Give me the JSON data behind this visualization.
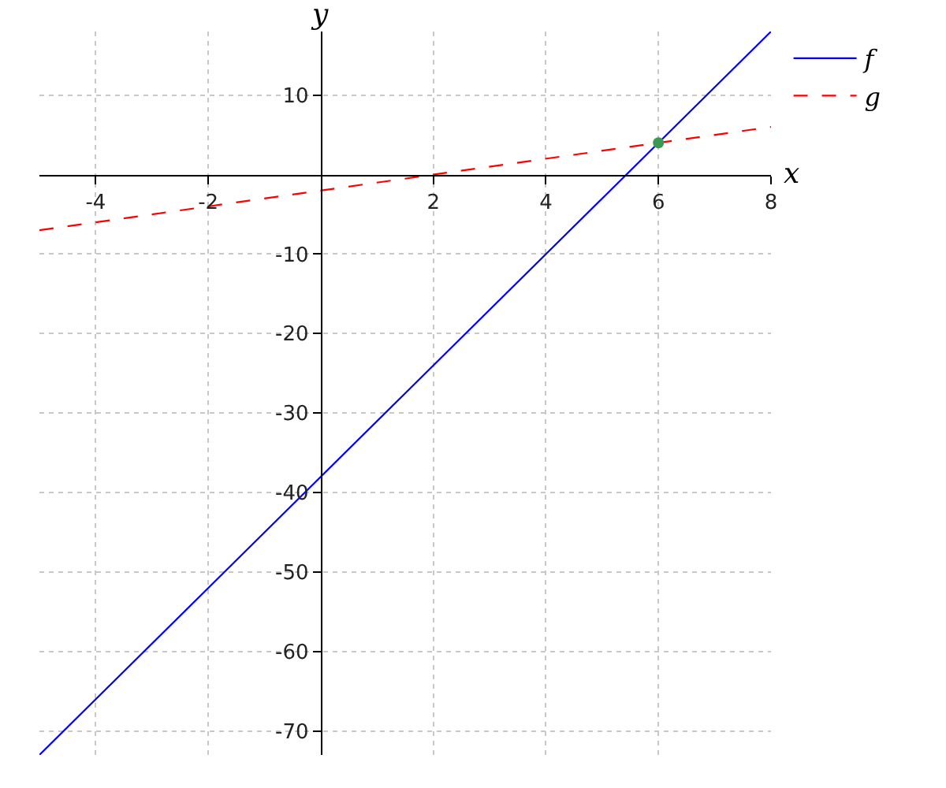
{
  "chart_data": {
    "type": "line",
    "xlabel": "x",
    "ylabel": "y",
    "xlim": [
      -5,
      8
    ],
    "ylim": [
      -73,
      18
    ],
    "xticks": [
      -4,
      -2,
      2,
      4,
      6,
      8
    ],
    "yticks": [
      -70,
      -60,
      -50,
      -40,
      -30,
      -20,
      -10,
      10
    ],
    "grid": true,
    "legend": "top right",
    "series": [
      {
        "name": "f",
        "color": "#0000ff",
        "x": [
          -5,
          8
        ],
        "values": [
          -73,
          18
        ],
        "line_style": "solid",
        "marker": "none"
      },
      {
        "name": "g",
        "color": "#ff0000",
        "x": [
          -5,
          8
        ],
        "values": [
          -7,
          6
        ],
        "line_style": "dashed",
        "marker": "none"
      },
      {
        "type": "scatter",
        "color": "#3a9a52",
        "x": [
          6
        ],
        "values": [
          4
        ],
        "marker": "circle"
      }
    ]
  }
}
